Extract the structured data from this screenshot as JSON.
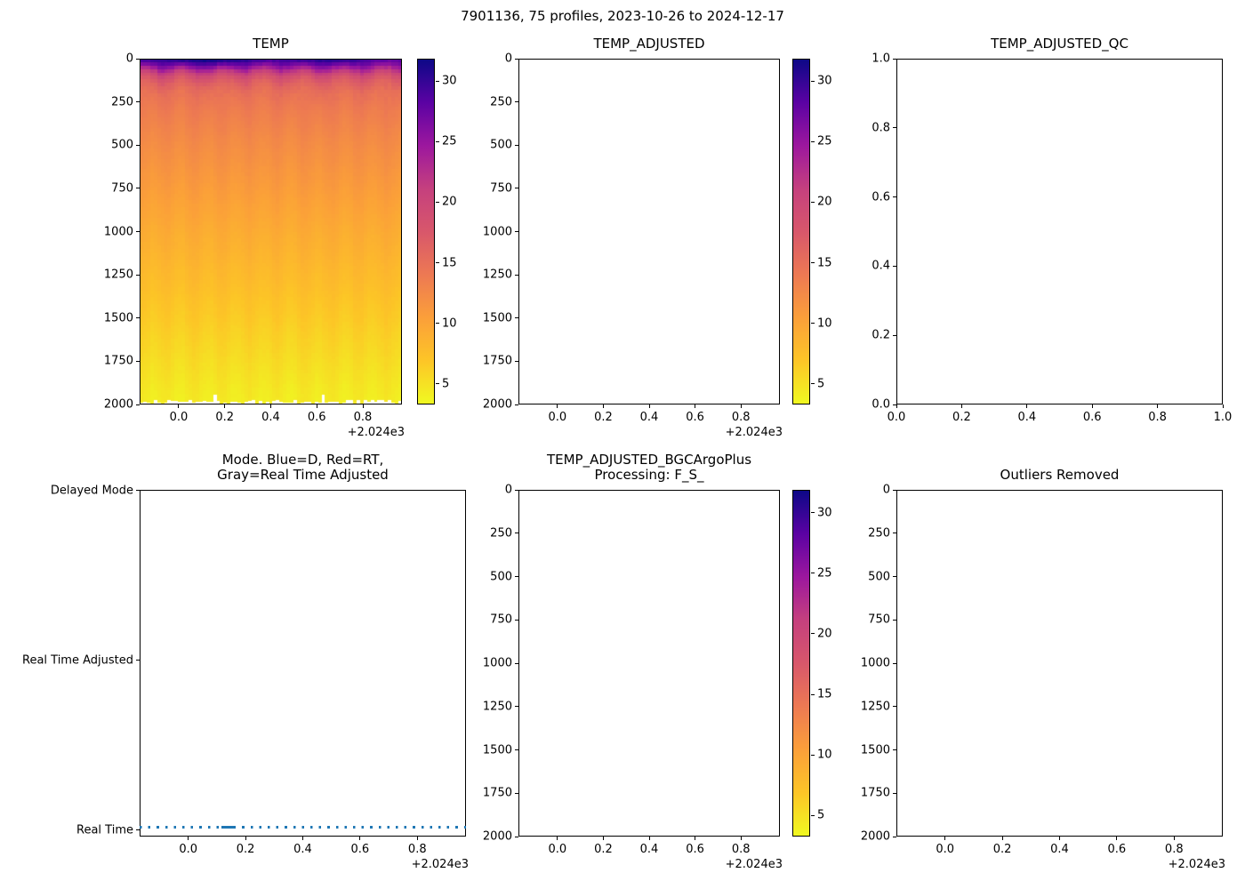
{
  "suptitle": "7901136, 75 profiles, 2023-10-26 to 2024-12-17",
  "palette": {
    "plasma_stops": [
      [
        0,
        "#0d0887"
      ],
      [
        0.125,
        "#5b02a3"
      ],
      [
        0.25,
        "#9c179e"
      ],
      [
        0.375,
        "#c5407e"
      ],
      [
        0.5,
        "#d8576b"
      ],
      [
        0.625,
        "#ed7953"
      ],
      [
        0.75,
        "#fb9f3a"
      ],
      [
        0.875,
        "#fdc527"
      ],
      [
        1,
        "#f0f921"
      ]
    ]
  },
  "chart_data": [
    {
      "type": "heatmap",
      "title": "TEMP",
      "n_profiles": 75,
      "x_axis": {
        "tick_labels": [
          "0.0",
          "0.2",
          "0.4",
          "0.6",
          "0.8"
        ],
        "tick_values": [
          0,
          0.2,
          0.4,
          0.6,
          0.8
        ],
        "range": [
          -0.17,
          0.97
        ],
        "offset_label": "+2.024e3"
      },
      "y_axis": {
        "tick_labels": [
          "0",
          "250",
          "500",
          "750",
          "1000",
          "1250",
          "1500",
          "1750",
          "2000"
        ],
        "tick_values": [
          0,
          250,
          500,
          750,
          1000,
          1250,
          1500,
          1750,
          2000
        ],
        "range": [
          0,
          2000
        ],
        "inverted": true
      },
      "colorbar": {
        "tick_labels": [
          "5",
          "10",
          "15",
          "20",
          "25",
          "30"
        ],
        "tick_values": [
          5,
          10,
          15,
          20,
          25,
          30
        ],
        "range": [
          3.2,
          31.8
        ],
        "colormap": "plasma_r"
      },
      "mean_profile": {
        "depth_m": [
          0,
          15,
          30,
          50,
          70,
          90,
          110,
          140,
          170,
          200,
          250,
          300,
          400,
          500,
          600,
          700,
          800,
          900,
          1000,
          1100,
          1200,
          1300,
          1400,
          1500,
          1600,
          1700,
          1800,
          1900,
          2000
        ],
        "temp_c": [
          29.8,
          28.8,
          27.0,
          24.3,
          21.6,
          19.6,
          18.0,
          16.4,
          15.4,
          14.7,
          14.1,
          13.6,
          12.8,
          12.1,
          11.5,
          10.9,
          10.3,
          9.7,
          9.1,
          8.6,
          8.0,
          7.5,
          6.9,
          6.4,
          5.9,
          5.4,
          4.9,
          4.4,
          4.0
        ]
      },
      "max_depth_noise_m": [
        1972,
        1998
      ],
      "shallow_end_columns": [
        21,
        52
      ]
    },
    {
      "type": "empty",
      "title": "TEMP_ADJUSTED",
      "x_axis": {
        "tick_labels": [
          "0.0",
          "0.2",
          "0.4",
          "0.6",
          "0.8"
        ],
        "tick_values": [
          0,
          0.2,
          0.4,
          0.6,
          0.8
        ],
        "range": [
          -0.17,
          0.97
        ],
        "offset_label": "+2.024e3"
      },
      "y_axis": {
        "tick_labels": [
          "0",
          "250",
          "500",
          "750",
          "1000",
          "1250",
          "1500",
          "1750",
          "2000"
        ],
        "tick_values": [
          0,
          250,
          500,
          750,
          1000,
          1250,
          1500,
          1750,
          2000
        ],
        "range": [
          0,
          2000
        ],
        "inverted": true
      },
      "colorbar": {
        "tick_labels": [
          "5",
          "10",
          "15",
          "20",
          "25",
          "30"
        ],
        "tick_values": [
          5,
          10,
          15,
          20,
          25,
          30
        ],
        "range": [
          3.2,
          31.8
        ],
        "colormap": "plasma_r"
      }
    },
    {
      "type": "empty",
      "title": "TEMP_ADJUSTED_QC",
      "x_axis": {
        "tick_labels": [
          "0.0",
          "0.2",
          "0.4",
          "0.6",
          "0.8",
          "1.0"
        ],
        "tick_values": [
          0,
          0.2,
          0.4,
          0.6,
          0.8,
          1
        ],
        "range": [
          0,
          1
        ]
      },
      "y_axis": {
        "tick_labels": [
          "0.0",
          "0.2",
          "0.4",
          "0.6",
          "0.8",
          "1.0"
        ],
        "tick_values": [
          0,
          0.2,
          0.4,
          0.6,
          0.8,
          1
        ],
        "range": [
          0,
          1
        ],
        "inverted": false
      }
    },
    {
      "type": "line",
      "title_lines": [
        "Mode. Blue=D, Red=RT,",
        "Gray=Real Time Adjusted"
      ],
      "x_axis": {
        "tick_labels": [
          "0.0",
          "0.2",
          "0.4",
          "0.6",
          "0.8"
        ],
        "tick_values": [
          0,
          0.2,
          0.4,
          0.6,
          0.8
        ],
        "range": [
          -0.17,
          0.97
        ],
        "offset_label": "+2.024e3"
      },
      "y_axis": {
        "categories": [
          "Delayed Mode",
          "Real Time Adjusted",
          "Real Time"
        ]
      },
      "series": [
        {
          "name": "data_mode",
          "style": "dotted",
          "color": "#1f77b4",
          "constant_value": "Real Time",
          "x_span": [
            -0.17,
            0.97
          ],
          "dense_segment_x": [
            0.115,
            0.155
          ]
        }
      ]
    },
    {
      "type": "empty",
      "title_lines": [
        "TEMP_ADJUSTED_BGCArgoPlus",
        "Processing: F_S_"
      ],
      "x_axis": {
        "tick_labels": [
          "0.0",
          "0.2",
          "0.4",
          "0.6",
          "0.8"
        ],
        "tick_values": [
          0,
          0.2,
          0.4,
          0.6,
          0.8
        ],
        "range": [
          -0.17,
          0.97
        ],
        "offset_label": "+2.024e3"
      },
      "y_axis": {
        "tick_labels": [
          "0",
          "250",
          "500",
          "750",
          "1000",
          "1250",
          "1500",
          "1750",
          "2000"
        ],
        "tick_values": [
          0,
          250,
          500,
          750,
          1000,
          1250,
          1500,
          1750,
          2000
        ],
        "range": [
          0,
          2000
        ],
        "inverted": true
      },
      "colorbar": {
        "tick_labels": [
          "5",
          "10",
          "15",
          "20",
          "25",
          "30"
        ],
        "tick_values": [
          5,
          10,
          15,
          20,
          25,
          30
        ],
        "range": [
          3.2,
          31.8
        ],
        "colormap": "plasma_r"
      }
    },
    {
      "type": "empty",
      "title": "Outliers Removed",
      "x_axis": {
        "tick_labels": [
          "0.0",
          "0.2",
          "0.4",
          "0.6",
          "0.8"
        ],
        "tick_values": [
          0,
          0.2,
          0.4,
          0.6,
          0.8
        ],
        "range": [
          -0.17,
          0.97
        ],
        "offset_label": "+2.024e3"
      },
      "y_axis": {
        "tick_labels": [
          "0",
          "250",
          "500",
          "750",
          "1000",
          "1250",
          "1500",
          "1750",
          "2000"
        ],
        "tick_values": [
          0,
          250,
          500,
          750,
          1000,
          1250,
          1500,
          1750,
          2000
        ],
        "range": [
          0,
          2000
        ],
        "inverted": true
      }
    }
  ]
}
